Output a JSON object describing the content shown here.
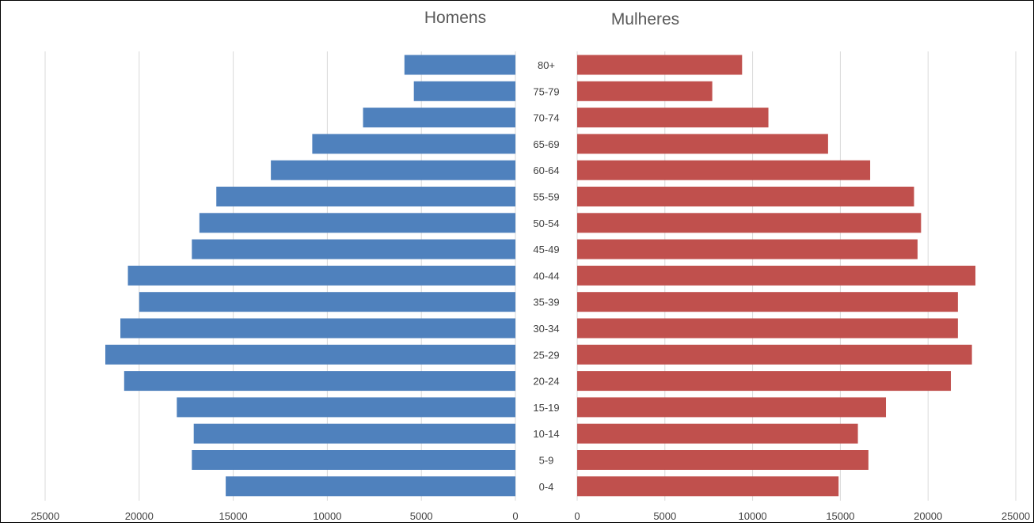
{
  "chart_data": {
    "type": "bar",
    "categories": [
      "80+",
      "75-79",
      "70-74",
      "65-69",
      "60-64",
      "55-59",
      "50-54",
      "45-49",
      "40-44",
      "35-39",
      "30-34",
      "25-29",
      "20-24",
      "15-19",
      "10-14",
      "5-9",
      "0-4"
    ],
    "series": [
      {
        "name": "Homens",
        "values": [
          5900,
          5400,
          8100,
          10800,
          13000,
          15900,
          16800,
          17200,
          20600,
          20000,
          21000,
          21800,
          20800,
          18000,
          17100,
          17200,
          15400
        ]
      },
      {
        "name": "Mulheres",
        "values": [
          9400,
          7700,
          10900,
          14300,
          16700,
          19200,
          19600,
          19400,
          22700,
          21700,
          21700,
          22500,
          21300,
          17600,
          16000,
          16600,
          14900
        ]
      }
    ],
    "colors": [
      "#4f81bd",
      "#c0504d"
    ],
    "xlim": [
      0,
      25000
    ],
    "x_ticks": [
      "25000",
      "20000",
      "15000",
      "10000",
      "5000",
      "0",
      "0",
      "5000",
      "10000",
      "15000",
      "20000",
      "25000"
    ],
    "grid": true,
    "orientation": "horizontal-mirrored"
  }
}
